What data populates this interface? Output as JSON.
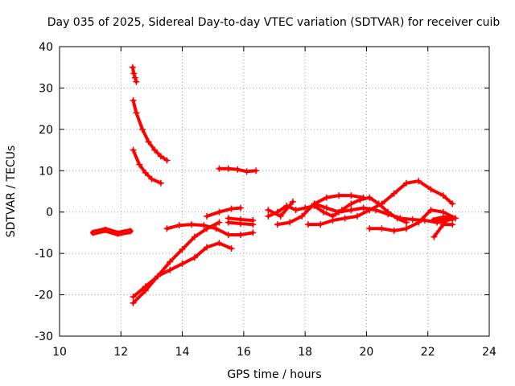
{
  "chart_data": {
    "type": "scatter",
    "title": "Day 035 of 2025, Sidereal Day-to-day VTEC variation (SDTVAR) for receiver cuib",
    "xlabel": "GPS time / hours",
    "ylabel": "SDTVAR / TECUs",
    "xlim": [
      10,
      24
    ],
    "ylim": [
      -30,
      40
    ],
    "xticks": [
      10,
      12,
      14,
      16,
      18,
      20,
      22,
      24
    ],
    "yticks": [
      -30,
      -20,
      -10,
      0,
      10,
      20,
      30,
      40
    ],
    "grid": true,
    "marker": "+",
    "color": "#ff0000",
    "series": [
      {
        "name": "seg-1",
        "x": [
          11.1,
          11.5,
          11.9,
          12.3
        ],
        "y": [
          -5,
          -4.3,
          -5.2,
          -4.6
        ],
        "dense": true
      },
      {
        "name": "seg-2",
        "x": [
          12.38,
          12.42,
          12.46,
          12.5
        ],
        "y": [
          35,
          33.5,
          32.5,
          31.5
        ]
      },
      {
        "name": "seg-3",
        "x": [
          12.4,
          12.5,
          12.7,
          12.9,
          13.1,
          13.3,
          13.5
        ],
        "y": [
          27,
          24,
          20,
          17,
          15,
          13.5,
          12.5
        ]
      },
      {
        "name": "seg-4",
        "x": [
          12.4,
          12.6,
          12.8,
          13.0,
          13.3
        ],
        "y": [
          15,
          11.5,
          9.5,
          8,
          7
        ]
      },
      {
        "name": "seg-5",
        "x": [
          12.4,
          12.8,
          13.2,
          13.6,
          14.0,
          14.4,
          14.8,
          15.2
        ],
        "y": [
          -22,
          -19,
          -15.5,
          -12,
          -9,
          -6,
          -4,
          -2.5
        ]
      },
      {
        "name": "seg-6",
        "x": [
          12.4,
          12.8,
          13.2,
          13.6,
          14.0,
          14.4,
          14.8,
          15.2,
          15.6
        ],
        "y": [
          -20.5,
          -18,
          -15.5,
          -14,
          -12.5,
          -11,
          -8.5,
          -7.5,
          -8.8
        ]
      },
      {
        "name": "seg-7",
        "x": [
          13.5,
          13.9,
          14.3,
          14.7,
          15.1,
          15.5,
          15.9,
          16.3
        ],
        "y": [
          -4,
          -3.2,
          -3,
          -3.2,
          -4,
          -5.5,
          -5.5,
          -5
        ]
      },
      {
        "name": "seg-8",
        "x": [
          15.2,
          15.5,
          15.8,
          16.1,
          16.4
        ],
        "y": [
          10.5,
          10.5,
          10.3,
          9.8,
          10
        ]
      },
      {
        "name": "seg-9",
        "x": [
          14.8,
          15.2,
          15.6,
          15.9
        ],
        "y": [
          -1,
          0,
          0.8,
          1
        ]
      },
      {
        "name": "seg-10",
        "x": [
          15.5,
          15.9,
          16.3
        ],
        "y": [
          -1.5,
          -1.8,
          -2
        ]
      },
      {
        "name": "seg-11",
        "x": [
          15.5,
          15.9,
          16.3
        ],
        "y": [
          -2.5,
          -2.8,
          -3
        ]
      },
      {
        "name": "seg-12",
        "x": [
          16.8,
          17.1,
          17.4,
          17.7,
          18.0,
          18.3,
          18.6,
          18.9,
          19.2,
          19.5,
          19.8,
          20.1,
          20.4,
          20.7,
          21.0,
          21.3
        ],
        "y": [
          -1,
          0,
          1.5,
          0.5,
          1,
          1.5,
          0,
          -1,
          0.5,
          2,
          3,
          3.5,
          2,
          0,
          -1.5,
          -2.5
        ]
      },
      {
        "name": "seg-13",
        "x": [
          16.8,
          17.2,
          17.6
        ],
        "y": [
          0.5,
          -1,
          2.5
        ]
      },
      {
        "name": "seg-14",
        "x": [
          17.1,
          17.5,
          17.9,
          18.3,
          18.7,
          19.1,
          19.5,
          19.9
        ],
        "y": [
          -3,
          -2.5,
          -1,
          2,
          3.5,
          4,
          4,
          3.5
        ]
      },
      {
        "name": "seg-15",
        "x": [
          18.1,
          18.5,
          18.9,
          19.3,
          19.7,
          20.1,
          20.5,
          20.9,
          21.3,
          21.7,
          22.1,
          22.5,
          22.8
        ],
        "y": [
          -3,
          -3,
          -2,
          -1.5,
          -1,
          0.5,
          2,
          4.5,
          7,
          7.5,
          5.5,
          4,
          2
        ]
      },
      {
        "name": "seg-16",
        "x": [
          18.3,
          18.7,
          19.1,
          19.5,
          19.9,
          20.3,
          20.7,
          21.1,
          21.5,
          21.9,
          22.3,
          22.6
        ],
        "y": [
          2,
          1,
          0,
          0.5,
          1,
          0.5,
          -0.5,
          -1.5,
          -1.8,
          -2,
          -2.5,
          -2.2
        ]
      },
      {
        "name": "seg-17",
        "x": [
          20.1,
          20.5,
          20.9,
          21.3,
          21.7,
          22.1,
          22.5,
          22.9
        ],
        "y": [
          -4,
          -4,
          -4.5,
          -4,
          -2.5,
          0.5,
          0,
          -1.5
        ]
      },
      {
        "name": "seg-18",
        "x": [
          22.2,
          22.5,
          22.8
        ],
        "y": [
          -2,
          -1.5,
          -1.5
        ],
        "dense": true
      },
      {
        "name": "seg-19",
        "x": [
          22.2,
          22.5,
          22.8
        ],
        "y": [
          -6,
          -3,
          -3
        ]
      }
    ]
  }
}
